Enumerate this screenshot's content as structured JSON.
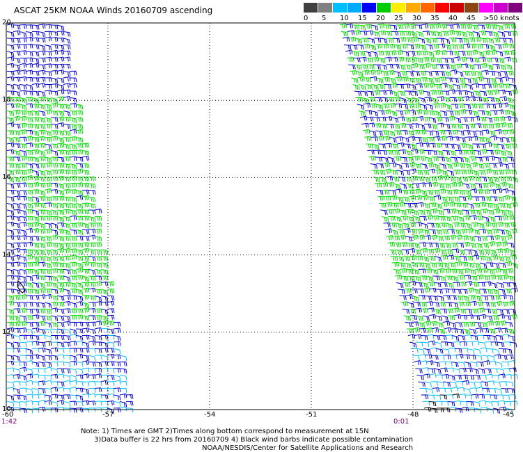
{
  "title": "ASCAT 25KM NOAA Winds 20160709 ascending",
  "legend": {
    "unit_label": ">50 knots",
    "ticks": [
      "0",
      "5",
      "10",
      "15",
      "20",
      "25",
      "30",
      "35",
      "40",
      "45"
    ],
    "colors": [
      "#404040",
      "#808080",
      "#00bfff",
      "#00aaff",
      "#0000ff",
      "#00cc00",
      "#ffee00",
      "#ffaa00",
      "#ff6600",
      "#ff0000",
      "#cc0000",
      "#8b4513",
      "#ff00ff",
      "#cc00cc",
      "#800080"
    ]
  },
  "map": {
    "lat_labels": [
      "20",
      "18",
      "16",
      "14",
      "12",
      "10"
    ],
    "lon_labels": [
      "-60",
      "-57",
      "-54",
      "-51",
      "-48",
      "-45"
    ],
    "lat_range": [
      10,
      20
    ],
    "lon_range": [
      -60,
      -45
    ]
  },
  "passes": [
    {
      "time": "1:42",
      "side": "west"
    },
    {
      "time": "0:01",
      "side": "east"
    }
  ],
  "wind_colors": {
    "calm": "#00bfff",
    "moderate": "#0000cc",
    "fresh": "#00dd00",
    "contaminated": "#000000"
  },
  "notes": {
    "line1": "Note: 1) Times are GMT 2)Times along bottom correspond to measurement at 15N",
    "line2": "      3)Data buffer is 22 hrs from 20160709 4) Black wind barbs indicate possible contamination",
    "line3": "NOAA/NESDIS/Center for Satellite Applications and Research"
  }
}
